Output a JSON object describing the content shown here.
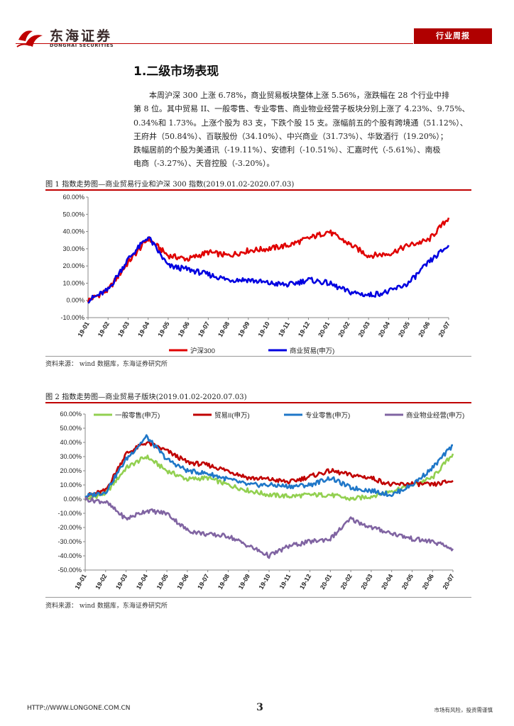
{
  "header": {
    "logo_cn": "东海证券",
    "logo_en": "DONGHAI SECURITIES",
    "badge": "行业周报",
    "colors": {
      "brand": "#b00000",
      "rule": "#c00000"
    }
  },
  "section": {
    "title": "1.二级市场表现",
    "paragraph_lines": [
      "本周沪深 300 上涨 6.78%，商业贸易板块整体上涨 5.56%，涨跌幅在 28 个行业中排",
      "第 8 位。其中贸易 II、一般零售、专业零售、商业物业经营子板块分别上涨了 4.23%、9.75%、",
      "0.34%和 1.73%。上涨个股为 83 支，下跌个股 15 支。涨幅前五的个股有跨境通（51.12%）、",
      "王府井（50.84%）、百联股份（34.10%）、中兴商业（31.73%）、华致酒行（19.20%）；",
      "跌幅居前的个股为美通讯（-19.11%）、安德利（-10.51%）、汇嘉时代（-5.61%）、南极",
      "电商（-3.27%）、天音控股（-3.20%）。"
    ]
  },
  "figure1": {
    "title": "图 1    指数走势图—商业贸易行业和沪深 300 指数(2019.01.02-2020.07.03)",
    "source": "资料来源：  wind 数据库，东海证券研究所"
  },
  "figure2": {
    "title": "图 2    指数走势图—商业贸易子版块(2019.01.02-2020.07.03)",
    "source": "资料来源：  wind 数据库，东海证券研究所"
  },
  "footer": {
    "url": "HTTP://WWW.LONGONE.COM.CN",
    "page": "3",
    "note": "市场有风险，投资需谨慎"
  },
  "chart_data": [
    {
      "type": "line",
      "title": "指数走势图—商业贸易行业和沪深 300 指数(2019.01.02-2020.07.03)",
      "categories": [
        "19-01",
        "19-02",
        "19-03",
        "19-04",
        "19-05",
        "19-06",
        "19-07",
        "19-08",
        "19-09",
        "19-10",
        "19-11",
        "19-12",
        "20-01",
        "20-02",
        "20-03",
        "20-04",
        "20-05",
        "20-06",
        "20-07"
      ],
      "ylim": [
        -10,
        60
      ],
      "yticks": [
        "-10.00%",
        "0.00%",
        "10.00%",
        "20.00%",
        "30.00%",
        "40.00%",
        "50.00%",
        "60.00%"
      ],
      "series": [
        {
          "name": "沪深300",
          "color": "#e00000",
          "values": [
            0,
            6,
            22,
            36,
            26,
            24,
            28,
            26,
            29,
            30,
            32,
            36,
            40,
            33,
            26,
            27,
            32,
            35,
            48
          ]
        },
        {
          "name": "商业贸易(申万)",
          "color": "#0000e0",
          "values": [
            0,
            6,
            24,
            37,
            20,
            18,
            15,
            12,
            12,
            10,
            9,
            12,
            10,
            5,
            3,
            5,
            10,
            22,
            32
          ]
        }
      ]
    },
    {
      "type": "line",
      "title": "指数走势图—商业贸易子版块(2019.01.02-2020.07.03)",
      "categories": [
        "19-01",
        "19-02",
        "19-03",
        "19-04",
        "19-05",
        "19-06",
        "19-07",
        "19-08",
        "19-09",
        "19-10",
        "19-11",
        "19-12",
        "20-01",
        "20-02",
        "20-03",
        "20-04",
        "20-05",
        "20-06",
        "20-07"
      ],
      "ylim": [
        -50,
        60
      ],
      "yticks": [
        "-50.00%",
        "-40.00%",
        "-30.00%",
        "-20.00%",
        "-10.00%",
        "0.00%",
        "10.00%",
        "20.00%",
        "30.00%",
        "40.00%",
        "50.00%",
        "60.00%"
      ],
      "series": [
        {
          "name": "一般零售(申万)",
          "color": "#92d050",
          "values": [
            0,
            4,
            22,
            30,
            20,
            14,
            15,
            10,
            6,
            3,
            2,
            3,
            3,
            0,
            2,
            6,
            10,
            15,
            32
          ]
        },
        {
          "name": "贸易II(申万)",
          "color": "#c00000",
          "values": [
            2,
            6,
            32,
            40,
            34,
            26,
            24,
            20,
            15,
            14,
            12,
            16,
            20,
            17,
            15,
            10,
            11,
            10,
            13
          ]
        },
        {
          "name": "专业零售(申万)",
          "color": "#1f77c8",
          "values": [
            2,
            5,
            28,
            44,
            28,
            20,
            18,
            14,
            10,
            10,
            9,
            10,
            15,
            8,
            6,
            3,
            10,
            22,
            38
          ]
        },
        {
          "name": "商业物业经营(申万)",
          "color": "#8064a2",
          "values": [
            0,
            -2,
            -14,
            -8,
            -10,
            -22,
            -25,
            -26,
            -33,
            -40,
            -33,
            -30,
            -28,
            -14,
            -20,
            -24,
            -28,
            -30,
            -35
          ]
        }
      ]
    }
  ]
}
